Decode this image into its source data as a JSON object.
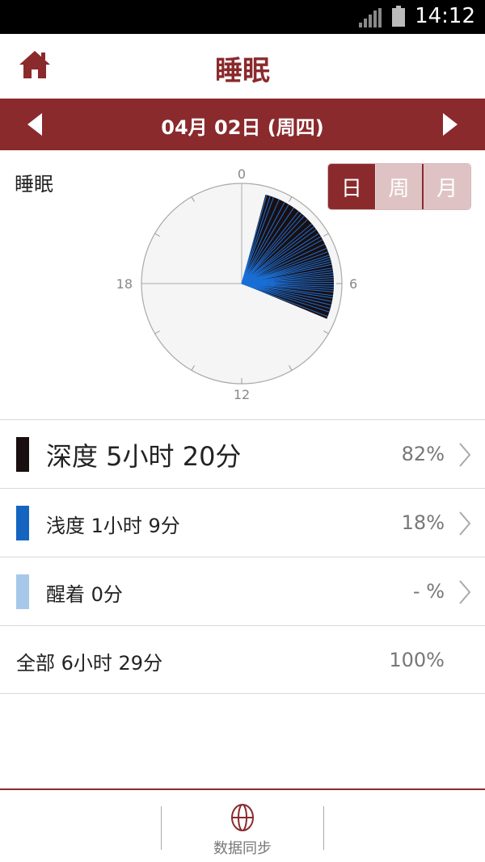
{
  "status_bar": {
    "time": "14:12",
    "icons": [
      "signal-icon",
      "battery-icon"
    ]
  },
  "header": {
    "title": "睡眠",
    "home_icon": "home-icon"
  },
  "date_nav": {
    "date": "04月 02日 (周四)",
    "prev_icon": "chevron-left-icon",
    "next_icon": "chevron-right-icon"
  },
  "chart": {
    "title": "睡眠",
    "toggle": {
      "day": "日",
      "week": "周",
      "month": "月",
      "active": "day"
    }
  },
  "chart_data": {
    "type": "pie",
    "dial_labels": [
      "0",
      "6",
      "12",
      "18"
    ],
    "dial_hours": 24,
    "sleep_start_hour": 1.0,
    "sleep_end_hour": 7.5,
    "deep_color": "#1a0f10",
    "light_color": "#1a6fd6",
    "light_bands_hours": [
      1.05,
      1.2,
      1.35,
      1.6,
      1.85,
      2.05,
      2.3,
      2.55,
      2.7,
      2.85,
      3.05,
      3.3,
      3.45,
      3.6,
      3.8,
      3.95,
      4.1,
      4.3,
      4.5,
      4.65,
      4.8,
      4.9,
      5.0,
      5.1,
      5.2,
      5.35,
      5.45,
      5.55,
      5.65,
      5.75,
      5.85,
      5.95,
      6.05,
      6.15,
      6.25,
      6.35,
      6.5,
      6.6,
      6.75,
      6.9,
      7.05,
      7.2,
      7.4
    ]
  },
  "summary": {
    "deep": {
      "label": "深度 5小时 20分",
      "pct": "82%",
      "color": "#1a0f10"
    },
    "light": {
      "label": "浅度 1小时 9分",
      "pct": "18%",
      "color": "#1565c0"
    },
    "awake": {
      "label": "醒着 0分",
      "pct": "- %",
      "color": "#a8c8ea"
    },
    "total": {
      "label": "全部 6小时 29分",
      "pct": "100%"
    }
  },
  "bottom_bar": {
    "sync_label": "数据同步",
    "sync_icon": "sync-drum-icon"
  },
  "colors": {
    "brand": "#8a2a2d",
    "toggle_inactive": "#dfc3c4"
  }
}
